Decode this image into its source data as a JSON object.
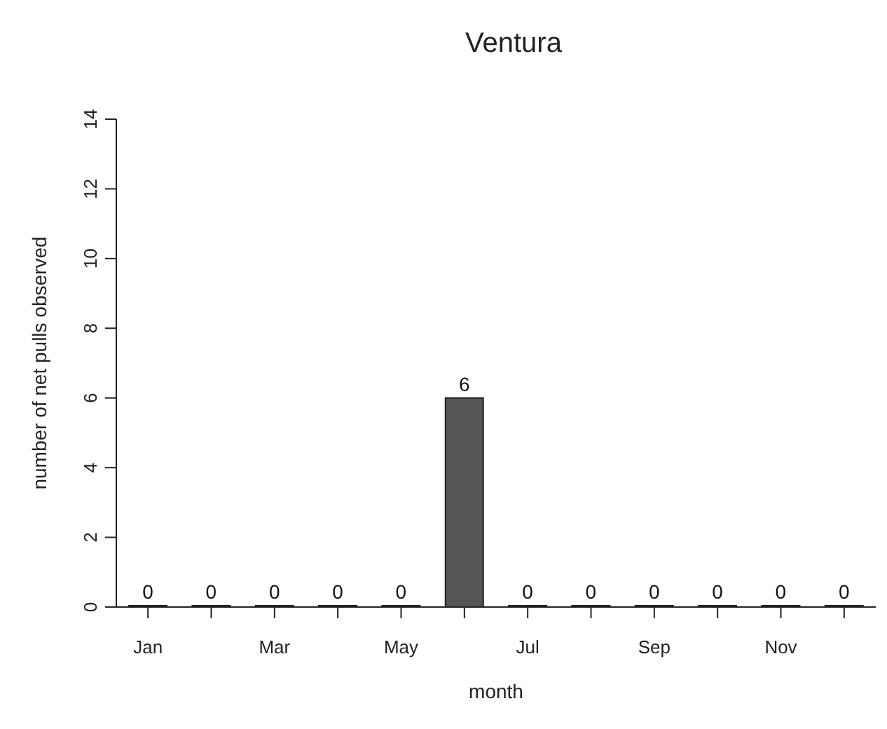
{
  "chart_data": {
    "type": "bar",
    "title": "Ventura",
    "xlabel": "month",
    "ylabel": "number of net pulls observed",
    "categories": [
      "Jan",
      null,
      "Mar",
      null,
      "May",
      null,
      "Jul",
      null,
      "Sep",
      null,
      "Nov",
      null
    ],
    "values": [
      0,
      0,
      0,
      0,
      0,
      6,
      0,
      0,
      0,
      0,
      0,
      0
    ],
    "color": "#555555",
    "ylim": [
      0,
      14
    ],
    "yticks": [
      0,
      2,
      4,
      6,
      8,
      10,
      12,
      14
    ],
    "data_labels": true,
    "grid": false
  }
}
